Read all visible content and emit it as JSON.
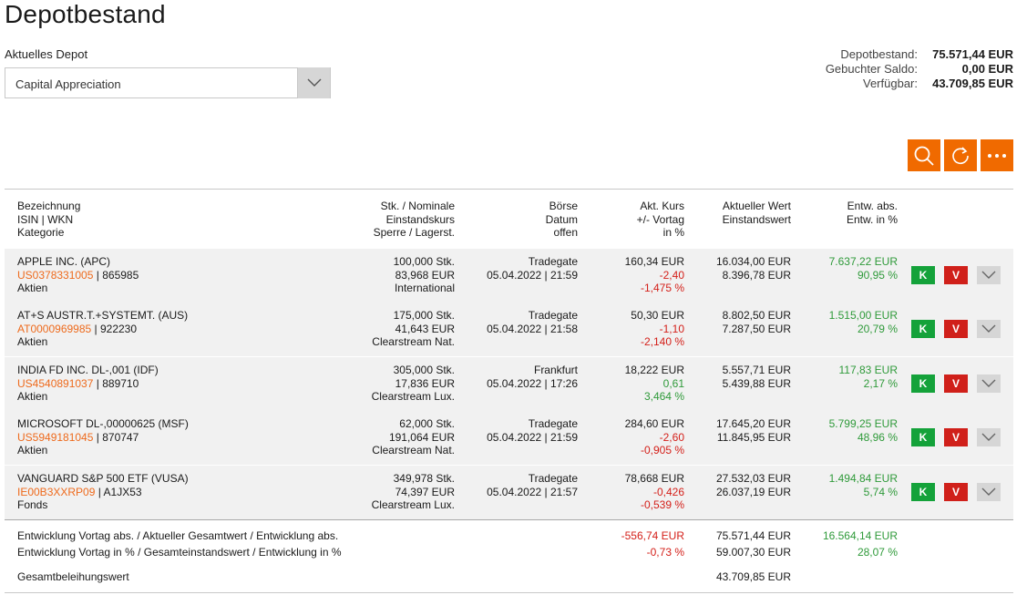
{
  "page": {
    "title": "Depotbestand"
  },
  "depot": {
    "label": "Aktuelles Depot",
    "selected": "Capital Appreciation"
  },
  "summary": [
    {
      "label": "Depotbestand:",
      "value": "75.571,44 EUR"
    },
    {
      "label": "Gebuchter Saldo:",
      "value": "0,00 EUR"
    },
    {
      "label": "Verfügbar:",
      "value": "43.709,85 EUR"
    }
  ],
  "toolbar": {
    "search_icon": "search-icon",
    "refresh_icon": "refresh-icon",
    "more_icon": "more-icon"
  },
  "columns": {
    "c1": [
      "Bezeichnung",
      "ISIN | WKN",
      "Kategorie"
    ],
    "c2": [
      "Stk. / Nominale",
      "Einstandskurs",
      "Sperre / Lagerst."
    ],
    "c3": [
      "Börse",
      "Datum",
      "offen"
    ],
    "c4": [
      "Akt. Kurs",
      "+/- Vortag",
      "in %"
    ],
    "c5": [
      "Aktueller Wert",
      "Einstandswert"
    ],
    "c6": [
      "Entw. abs.",
      "Entw. in %"
    ]
  },
  "rows": [
    {
      "name": "APPLE INC. (APC)",
      "isin": "US0378331005",
      "wkn": "865985",
      "category": "Aktien",
      "qty": "100,000 Stk.",
      "cost": "83,968 EUR",
      "custody": "International",
      "exchange": "Tradegate",
      "date": "05.04.2022 | 21:59",
      "price": "160,34 EUR",
      "change": "-2,40",
      "change_pct": "-1,475 %",
      "value": "16.034,00 EUR",
      "cost_value": "8.396,78 EUR",
      "dev_abs": "7.637,22 EUR",
      "dev_pct": "90,95 %",
      "buy": "K",
      "sell": "V"
    },
    {
      "name": "AT+S AUSTR.T.+SYSTEMT. (AUS)",
      "isin": "AT0000969985",
      "wkn": "922230",
      "category": "Aktien",
      "qty": "175,000 Stk.",
      "cost": "41,643 EUR",
      "custody": "Clearstream Nat.",
      "exchange": "Tradegate",
      "date": "05.04.2022 | 21:58",
      "price": "50,30 EUR",
      "change": "-1,10",
      "change_pct": "-2,140 %",
      "value": "8.802,50 EUR",
      "cost_value": "7.287,50 EUR",
      "dev_abs": "1.515,00 EUR",
      "dev_pct": "20,79 %",
      "buy": "K",
      "sell": "V"
    },
    {
      "name": "INDIA FD INC. DL-,001 (IDF)",
      "isin": "US4540891037",
      "wkn": "889710",
      "category": "Aktien",
      "qty": "305,000 Stk.",
      "cost": "17,836 EUR",
      "custody": "Clearstream Lux.",
      "exchange": "Frankfurt",
      "date": "05.04.2022 | 17:26",
      "price": "18,222 EUR",
      "change": "0,61",
      "change_pct": "3,464 %",
      "value": "5.557,71 EUR",
      "cost_value": "5.439,88 EUR",
      "dev_abs": "117,83 EUR",
      "dev_pct": "2,17 %",
      "buy": "K",
      "sell": "V"
    },
    {
      "name": "MICROSOFT DL-,00000625 (MSF)",
      "isin": "US5949181045",
      "wkn": "870747",
      "category": "Aktien",
      "qty": "62,000 Stk.",
      "cost": "191,064 EUR",
      "custody": "Clearstream Nat.",
      "exchange": "Tradegate",
      "date": "05.04.2022 | 21:59",
      "price": "284,60 EUR",
      "change": "-2,60",
      "change_pct": "-0,905 %",
      "value": "17.645,20 EUR",
      "cost_value": "11.845,95 EUR",
      "dev_abs": "5.799,25 EUR",
      "dev_pct": "48,96 %",
      "buy": "K",
      "sell": "V"
    },
    {
      "name": "VANGUARD S&P 500 ETF (VUSA)",
      "isin": "IE00B3XXRP09",
      "wkn": "A1JX53",
      "category": "Fonds",
      "qty": "349,978 Stk.",
      "cost": "74,397 EUR",
      "custody": "Clearstream Lux.",
      "exchange": "Tradegate",
      "date": "05.04.2022 | 21:57",
      "price": "78,668 EUR",
      "change": "-0,426",
      "change_pct": "-0,539 %",
      "value": "27.532,03 EUR",
      "cost_value": "26.037,19 EUR",
      "dev_abs": "1.494,84 EUR",
      "dev_pct": "5,74 %",
      "buy": "K",
      "sell": "V"
    }
  ],
  "totals": {
    "line1_label": "Entwicklung Vortag abs. / Aktueller Gesamtwert / Entwicklung abs.",
    "line1_change": "-556,74 EUR",
    "line1_value": "75.571,44 EUR",
    "line1_dev": "16.564,14 EUR",
    "line2_label": "Entwicklung Vortag in % / Gesamteinstandswert / Entwicklung in %",
    "line2_change": "-0,73 %",
    "line2_value": "59.007,30 EUR",
    "line2_dev": "28,07 %",
    "line3_label": "Gesamtbeleihungswert",
    "line3_value": "43.709,85 EUR"
  },
  "colors": {
    "accent": "#f06a00",
    "isin": "#ee6a1c",
    "negative": "#d4201a",
    "positive": "#2f9a3a",
    "buy": "#14a23a",
    "sell": "#d0201a"
  }
}
